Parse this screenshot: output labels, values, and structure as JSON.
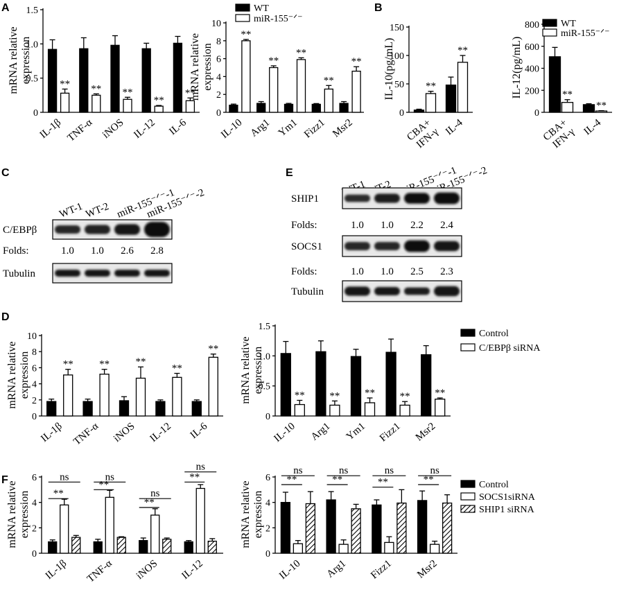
{
  "colors": {
    "black": "#000000",
    "white": "#ffffff",
    "band": "#1a1a1a"
  },
  "panel_labels": {
    "A": "A",
    "B": "B",
    "C": "C",
    "D": "D",
    "E": "E",
    "F": "F"
  },
  "chart_data": [
    {
      "id": "A1",
      "type": "bar",
      "ylabel": "mRNA relative expression",
      "ylabel_lines": [
        "mRNA relative",
        "expression"
      ],
      "categories": [
        "IL-1β",
        "TNF-α",
        "iNOS",
        "IL-12",
        "IL-6"
      ],
      "yticks": [
        "0",
        "0.5",
        "1.0",
        "1.5"
      ],
      "ytick_values": [
        0,
        0.5,
        1.0,
        1.5
      ],
      "ylim": [
        0,
        1.5
      ],
      "series": [
        {
          "values": [
            0.92,
            0.93,
            0.98,
            0.93,
            1.01
          ],
          "errors": [
            0.14,
            0.16,
            0.14,
            0.08,
            0.1
          ],
          "fill": "black"
        },
        {
          "values": [
            0.28,
            0.25,
            0.19,
            0.09,
            0.17
          ],
          "errors": [
            0.06,
            0.02,
            0.03,
            0.01,
            0.04
          ],
          "fill": "white"
        }
      ],
      "sig": [
        [
          "",
          "**"
        ],
        [
          "",
          "**"
        ],
        [
          "",
          "**"
        ],
        [
          "",
          "**"
        ],
        [
          "",
          "**"
        ]
      ]
    },
    {
      "id": "A2",
      "type": "bar",
      "ylabel": "mRNA relative expression",
      "ylabel_lines": [
        "mRNA relative",
        "expression"
      ],
      "categories": [
        "IL-10",
        "Arg1",
        "Ym1",
        "Fizz1",
        "Msr2"
      ],
      "yticks": [
        "0",
        "2",
        "4",
        "6",
        "8",
        "10"
      ],
      "ytick_values": [
        0,
        2,
        4,
        6,
        8,
        10
      ],
      "ylim": [
        0,
        10
      ],
      "legend": [
        "WT",
        "miR-155⁻ᐟ⁻"
      ],
      "series": [
        {
          "name": "WT",
          "values": [
            0.8,
            1.0,
            0.9,
            0.9,
            1.0
          ],
          "errors": [
            0.12,
            0.2,
            0.1,
            0.08,
            0.2
          ],
          "fill": "black"
        },
        {
          "name": "miR-155⁻ᐟ⁻",
          "values": [
            8.0,
            5.0,
            5.9,
            2.6,
            4.6
          ],
          "errors": [
            0.15,
            0.2,
            0.2,
            0.4,
            0.5
          ],
          "fill": "white"
        }
      ],
      "sig": [
        [
          "",
          "**"
        ],
        [
          "",
          "**"
        ],
        [
          "",
          "**"
        ],
        [
          "",
          "**"
        ],
        [
          "",
          "**"
        ]
      ]
    },
    {
      "id": "B1",
      "type": "bar",
      "ylabel": "IL-10(pg/mL)",
      "categories": [
        "CBA+ IFN-γ",
        "IL-4"
      ],
      "category_lines": [
        [
          "CBA+",
          "IFN-γ"
        ],
        [
          "IL-4"
        ]
      ],
      "yticks": [
        "0",
        "50",
        "100",
        "150"
      ],
      "ytick_values": [
        0,
        50,
        100,
        150
      ],
      "ylim": [
        0,
        150
      ],
      "series": [
        {
          "values": [
            4,
            48
          ],
          "errors": [
            1.5,
            14
          ],
          "fill": "black"
        },
        {
          "values": [
            33,
            88
          ],
          "errors": [
            4,
            12
          ],
          "fill": "white"
        }
      ],
      "sig": [
        [
          "",
          "**"
        ],
        [
          "",
          "**"
        ]
      ]
    },
    {
      "id": "B2",
      "type": "bar",
      "ylabel": "IL-12(pg/mL)",
      "categories": [
        "CBA+ IFN-γ",
        "IL-4"
      ],
      "category_lines": [
        [
          "CBA+",
          "IFN-γ"
        ],
        [
          "IL-4"
        ]
      ],
      "yticks": [
        "0",
        "200",
        "400",
        "600",
        "800"
      ],
      "ytick_values": [
        0,
        200,
        400,
        600,
        800
      ],
      "ylim": [
        0,
        800
      ],
      "legend": [
        "WT",
        "miR-155⁻ᐟ⁻"
      ],
      "series": [
        {
          "name": "WT",
          "values": [
            505,
            70
          ],
          "errors": [
            85,
            8
          ],
          "fill": "black"
        },
        {
          "name": "miR-155⁻ᐟ⁻",
          "values": [
            90,
            12
          ],
          "errors": [
            25,
            3
          ],
          "fill": "white"
        }
      ],
      "sig": [
        [
          "",
          "**"
        ],
        [
          "",
          "**"
        ]
      ]
    },
    {
      "id": "D1",
      "type": "bar",
      "ylabel": "mRNA relative expression",
      "ylabel_lines": [
        "mRNA relative",
        "expression"
      ],
      "categories": [
        "IL-1β",
        "TNF-α",
        "iNOS",
        "IL-12",
        "IL-6"
      ],
      "yticks": [
        "0",
        "2",
        "4",
        "6",
        "8",
        "10"
      ],
      "ytick_values": [
        0,
        2,
        4,
        6,
        8,
        10
      ],
      "ylim": [
        0,
        10
      ],
      "series": [
        {
          "values": [
            1.8,
            1.8,
            1.9,
            1.8,
            1.8
          ],
          "errors": [
            0.3,
            0.3,
            0.5,
            0.2,
            0.2
          ],
          "fill": "black"
        },
        {
          "values": [
            5.1,
            5.2,
            4.7,
            4.8,
            7.3
          ],
          "errors": [
            0.7,
            0.6,
            1.4,
            0.5,
            0.4
          ],
          "fill": "white"
        }
      ],
      "sig": [
        [
          "",
          "**"
        ],
        [
          "",
          "**"
        ],
        [
          "",
          "**"
        ],
        [
          "",
          "**"
        ],
        [
          "",
          "**"
        ]
      ]
    },
    {
      "id": "D2",
      "type": "bar",
      "ylabel": "mRNA relative expression",
      "ylabel_lines": [
        "mRNA relative",
        "expression"
      ],
      "categories": [
        "IL-10",
        "Arg1",
        "Ym1",
        "Fizz1",
        "Msr2"
      ],
      "yticks": [
        "0",
        "0.5",
        "1.0",
        "1.5"
      ],
      "ytick_values": [
        0,
        0.5,
        1.0,
        1.5
      ],
      "ylim": [
        0,
        1.5
      ],
      "legend": [
        "Control",
        "C/EBPβ siRNA"
      ],
      "series": [
        {
          "name": "Control",
          "values": [
            1.04,
            1.07,
            0.99,
            1.06,
            1.02
          ],
          "errors": [
            0.2,
            0.18,
            0.12,
            0.22,
            0.15
          ],
          "fill": "black"
        },
        {
          "name": "C/EBPβ siRNA",
          "values": [
            0.19,
            0.18,
            0.22,
            0.18,
            0.28
          ],
          "errors": [
            0.07,
            0.07,
            0.08,
            0.06,
            0.02
          ],
          "fill": "white"
        }
      ],
      "sig": [
        [
          "",
          "**"
        ],
        [
          "",
          "**"
        ],
        [
          "",
          "**"
        ],
        [
          "",
          "**"
        ],
        [
          "",
          "**"
        ]
      ]
    },
    {
      "id": "F1",
      "type": "bar",
      "ylabel": "mRNA relative expression",
      "ylabel_lines": [
        "mRNA relative",
        "expression"
      ],
      "categories": [
        "IL-1β",
        "TNF-α",
        "iNOS",
        "IL-12"
      ],
      "yticks": [
        "0",
        "2",
        "4",
        "6"
      ],
      "ytick_values": [
        0,
        2,
        4,
        6
      ],
      "ylim": [
        0,
        6
      ],
      "series": [
        {
          "values": [
            0.9,
            0.9,
            1.0,
            0.9
          ],
          "errors": [
            0.15,
            0.2,
            0.2,
            0.1
          ],
          "fill": "black"
        },
        {
          "values": [
            3.8,
            4.4,
            3.0,
            5.1
          ],
          "errors": [
            0.45,
            0.55,
            0.5,
            0.3
          ],
          "fill": "white"
        },
        {
          "values": [
            1.25,
            1.25,
            1.1,
            0.95
          ],
          "errors": [
            0.15,
            0.05,
            0.1,
            0.2
          ],
          "fill": "hatch"
        }
      ],
      "brackets": [
        {
          "from": [
            0,
            0
          ],
          "to": [
            0,
            1
          ],
          "y": 4.3,
          "label": "**"
        },
        {
          "from": [
            0,
            0
          ],
          "to": [
            0,
            2
          ],
          "y": 5.6,
          "label": "ns"
        },
        {
          "from": [
            1,
            0
          ],
          "to": [
            1,
            1
          ],
          "y": 5.0,
          "label": "**"
        },
        {
          "from": [
            1,
            0
          ],
          "to": [
            1,
            2
          ],
          "y": 5.6,
          "label": "ns"
        },
        {
          "from": [
            2,
            0
          ],
          "to": [
            2,
            1
          ],
          "y": 3.6,
          "label": "**"
        },
        {
          "from": [
            2,
            0
          ],
          "to": [
            2,
            2
          ],
          "y": 4.3,
          "label": "ns"
        },
        {
          "from": [
            3,
            0
          ],
          "to": [
            3,
            1
          ],
          "y": 5.6,
          "label": "**"
        },
        {
          "from": [
            3,
            0
          ],
          "to": [
            3,
            2
          ],
          "y": 6.4,
          "label": "ns"
        }
      ]
    },
    {
      "id": "F2",
      "type": "bar",
      "ylabel": "mRNA relative expression",
      "ylabel_lines": [
        "mRNA relative",
        "expression"
      ],
      "categories": [
        "IL-10",
        "Arg1",
        "Fizz1",
        "Msr2"
      ],
      "yticks": [
        "0",
        "2",
        "4",
        "6"
      ],
      "ytick_values": [
        0,
        2,
        4,
        6
      ],
      "ylim": [
        0,
        6
      ],
      "legend": [
        "Control",
        "SOCS1siRNA",
        "SHIP1 siRNA"
      ],
      "series": [
        {
          "name": "Control",
          "values": [
            4.0,
            4.2,
            3.8,
            4.15
          ],
          "errors": [
            0.8,
            0.65,
            0.4,
            0.75
          ],
          "fill": "black"
        },
        {
          "name": "SOCS1siRNA",
          "values": [
            0.75,
            0.7,
            0.85,
            0.7
          ],
          "errors": [
            0.25,
            0.35,
            0.45,
            0.25
          ],
          "fill": "white"
        },
        {
          "name": "SHIP1 siRNA",
          "values": [
            3.9,
            3.5,
            3.95,
            3.95
          ],
          "errors": [
            0.95,
            0.35,
            1.05,
            0.65
          ],
          "fill": "hatch"
        }
      ],
      "brackets": [
        {
          "from": [
            0,
            0
          ],
          "to": [
            0,
            1
          ],
          "y": 5.4,
          "label": "**"
        },
        {
          "from": [
            0,
            0
          ],
          "to": [
            0,
            2
          ],
          "y": 6.1,
          "label": "ns"
        },
        {
          "from": [
            1,
            0
          ],
          "to": [
            1,
            1
          ],
          "y": 5.4,
          "label": "**"
        },
        {
          "from": [
            1,
            0
          ],
          "to": [
            1,
            2
          ],
          "y": 6.1,
          "label": "ns"
        },
        {
          "from": [
            2,
            0
          ],
          "to": [
            2,
            1
          ],
          "y": 5.2,
          "label": "**"
        },
        {
          "from": [
            2,
            0
          ],
          "to": [
            2,
            2
          ],
          "y": 6.1,
          "label": "ns"
        },
        {
          "from": [
            3,
            0
          ],
          "to": [
            3,
            1
          ],
          "y": 5.4,
          "label": "**"
        },
        {
          "from": [
            3,
            0
          ],
          "to": [
            3,
            2
          ],
          "y": 6.1,
          "label": "ns"
        }
      ]
    }
  ],
  "blots": {
    "C": {
      "lanes": [
        "WT-1",
        "WT-2",
        "miR-155⁻ᐟ⁻-1",
        "miR-155⁻ᐟ⁻-2"
      ],
      "rows": [
        {
          "label": "C/EBPβ",
          "intensity": [
            0.55,
            0.6,
            0.75,
            1.0
          ],
          "thickness": [
            0.55,
            0.6,
            0.7,
            1.0
          ]
        },
        {
          "label": "Tubulin",
          "intensity": [
            0.8,
            0.8,
            0.8,
            0.8
          ],
          "thickness": [
            0.45,
            0.45,
            0.45,
            0.45
          ]
        }
      ],
      "folds_label": "Folds:",
      "folds": [
        "1.0",
        "1.0",
        "2.6",
        "2.8"
      ]
    },
    "E": {
      "lanes": [
        "WT-1",
        "WT-2",
        "miR-155⁻ᐟ⁻-1",
        "miR-155⁻ᐟ⁻-2"
      ],
      "rows": [
        {
          "label": "SHIP1",
          "intensity": [
            0.45,
            0.7,
            0.9,
            0.95
          ],
          "thickness": [
            0.45,
            0.55,
            0.65,
            0.7
          ]
        },
        {
          "label": "SOCS1",
          "intensity": [
            0.55,
            0.55,
            0.95,
            0.85
          ],
          "thickness": [
            0.5,
            0.5,
            0.7,
            0.6
          ]
        },
        {
          "label": "Tubulin",
          "intensity": [
            0.8,
            0.75,
            0.65,
            0.85
          ],
          "thickness": [
            0.55,
            0.5,
            0.45,
            0.6
          ]
        }
      ],
      "folds_label": "Folds:",
      "folds_sets": [
        [
          "1.0",
          "1.0",
          "2.2",
          "2.4"
        ],
        [
          "1.0",
          "1.0",
          "2.5",
          "2.3"
        ]
      ]
    }
  }
}
